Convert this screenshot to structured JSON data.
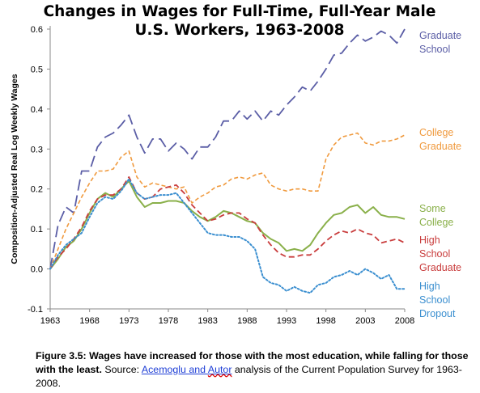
{
  "chart_data": {
    "type": "line",
    "title_lines": [
      "Changes in Wages for Full-Time, Full-Year Male",
      "U.S. Workers, 1963-2008"
    ],
    "ylabel": "Composition-Adjusted Real Log Weekly Wages",
    "ylim": [
      -0.1,
      0.6
    ],
    "yticks": [
      "-0.1",
      "0.0",
      "0.1",
      "0.2",
      "0.3",
      "0.4",
      "0.5",
      "0.6"
    ],
    "yticks_values": [
      -0.1,
      0.0,
      0.1,
      0.2,
      0.3,
      0.4,
      0.5,
      0.6
    ],
    "xlim": [
      1963,
      2008
    ],
    "xticks": [
      "1963",
      "1968",
      "1973",
      "1978",
      "1983",
      "1988",
      "1993",
      "1998",
      "2003",
      "2008"
    ],
    "xticks_values": [
      1963,
      1968,
      1973,
      1978,
      1983,
      1988,
      1993,
      1998,
      2003,
      2008
    ],
    "grid": false,
    "series": [
      {
        "name_lines": [
          "Graduate",
          "School"
        ],
        "color": "#5b5ea6",
        "dash": "long-dash",
        "x": [
          1963,
          1964,
          1965,
          1966,
          1967,
          1968,
          1969,
          1970,
          1971,
          1972,
          1973,
          1974,
          1975,
          1976,
          1977,
          1978,
          1979,
          1980,
          1981,
          1982,
          1983,
          1984,
          1985,
          1986,
          1987,
          1988,
          1989,
          1990,
          1991,
          1992,
          1993,
          1994,
          1995,
          1996,
          1997,
          1998,
          1999,
          2000,
          2001,
          2002,
          2003,
          2004,
          2005,
          2006,
          2007,
          2008
        ],
        "values": [
          0.0,
          0.11,
          0.155,
          0.14,
          0.245,
          0.245,
          0.305,
          0.33,
          0.34,
          0.36,
          0.385,
          0.33,
          0.29,
          0.325,
          0.325,
          0.295,
          0.315,
          0.3,
          0.275,
          0.305,
          0.305,
          0.33,
          0.37,
          0.37,
          0.395,
          0.375,
          0.395,
          0.37,
          0.395,
          0.385,
          0.41,
          0.43,
          0.455,
          0.445,
          0.47,
          0.5,
          0.535,
          0.54,
          0.565,
          0.585,
          0.57,
          0.58,
          0.595,
          0.585,
          0.565,
          0.6
        ]
      },
      {
        "name_lines": [
          "College",
          "Graduate"
        ],
        "color": "#f09a3e",
        "dash": "short-dash",
        "x": [
          1963,
          1964,
          1965,
          1966,
          1967,
          1968,
          1969,
          1970,
          1971,
          1972,
          1973,
          1974,
          1975,
          1976,
          1977,
          1978,
          1979,
          1980,
          1981,
          1982,
          1983,
          1984,
          1985,
          1986,
          1987,
          1988,
          1989,
          1990,
          1991,
          1992,
          1993,
          1994,
          1995,
          1996,
          1997,
          1998,
          1999,
          2000,
          2001,
          2002,
          2003,
          2004,
          2005,
          2006,
          2007,
          2008
        ],
        "values": [
          0.0,
          0.05,
          0.1,
          0.14,
          0.18,
          0.215,
          0.245,
          0.245,
          0.25,
          0.28,
          0.295,
          0.23,
          0.205,
          0.215,
          0.21,
          0.205,
          0.2,
          0.205,
          0.165,
          0.18,
          0.19,
          0.205,
          0.21,
          0.225,
          0.23,
          0.225,
          0.235,
          0.24,
          0.21,
          0.2,
          0.195,
          0.2,
          0.2,
          0.195,
          0.195,
          0.275,
          0.31,
          0.33,
          0.335,
          0.34,
          0.315,
          0.31,
          0.32,
          0.32,
          0.325,
          0.335
        ]
      },
      {
        "name_lines": [
          "Some",
          "College"
        ],
        "color": "#8ab04a",
        "dash": "solid",
        "x": [
          1963,
          1964,
          1965,
          1966,
          1967,
          1968,
          1969,
          1970,
          1971,
          1972,
          1973,
          1974,
          1975,
          1976,
          1977,
          1978,
          1979,
          1980,
          1981,
          1982,
          1983,
          1984,
          1985,
          1986,
          1987,
          1988,
          1989,
          1990,
          1991,
          1992,
          1993,
          1994,
          1995,
          1996,
          1997,
          1998,
          1999,
          2000,
          2001,
          2002,
          2003,
          2004,
          2005,
          2006,
          2007,
          2008
        ],
        "values": [
          0.0,
          0.025,
          0.055,
          0.07,
          0.1,
          0.14,
          0.175,
          0.19,
          0.18,
          0.2,
          0.22,
          0.18,
          0.155,
          0.165,
          0.165,
          0.17,
          0.17,
          0.165,
          0.145,
          0.13,
          0.12,
          0.13,
          0.145,
          0.14,
          0.13,
          0.12,
          0.115,
          0.09,
          0.075,
          0.065,
          0.045,
          0.05,
          0.045,
          0.06,
          0.09,
          0.115,
          0.135,
          0.14,
          0.155,
          0.16,
          0.14,
          0.155,
          0.135,
          0.13,
          0.13,
          0.125
        ]
      },
      {
        "name_lines": [
          "High",
          "School",
          "Graduate"
        ],
        "color": "#c93d3d",
        "dash": "dash",
        "x": [
          1963,
          1964,
          1965,
          1966,
          1967,
          1968,
          1969,
          1970,
          1971,
          1972,
          1973,
          1974,
          1975,
          1976,
          1977,
          1978,
          1979,
          1980,
          1981,
          1982,
          1983,
          1984,
          1985,
          1986,
          1987,
          1988,
          1989,
          1990,
          1991,
          1992,
          1993,
          1994,
          1995,
          1996,
          1997,
          1998,
          1999,
          2000,
          2001,
          2002,
          2003,
          2004,
          2005,
          2006,
          2007,
          2008
        ],
        "values": [
          0.0,
          0.03,
          0.05,
          0.075,
          0.105,
          0.145,
          0.175,
          0.185,
          0.185,
          0.2,
          0.23,
          0.19,
          0.175,
          0.18,
          0.2,
          0.205,
          0.21,
          0.19,
          0.16,
          0.14,
          0.12,
          0.125,
          0.135,
          0.14,
          0.14,
          0.125,
          0.115,
          0.085,
          0.06,
          0.04,
          0.03,
          0.03,
          0.035,
          0.035,
          0.05,
          0.07,
          0.085,
          0.095,
          0.09,
          0.1,
          0.09,
          0.085,
          0.065,
          0.07,
          0.075,
          0.065
        ]
      },
      {
        "name_lines": [
          "High",
          "School",
          "Dropout"
        ],
        "color": "#3b8fd0",
        "dash": "dotted",
        "x": [
          1963,
          1964,
          1965,
          1966,
          1967,
          1968,
          1969,
          1970,
          1971,
          1972,
          1973,
          1974,
          1975,
          1976,
          1977,
          1978,
          1979,
          1980,
          1981,
          1982,
          1983,
          1984,
          1985,
          1986,
          1987,
          1988,
          1989,
          1990,
          1991,
          1992,
          1993,
          1994,
          1995,
          1996,
          1997,
          1998,
          1999,
          2000,
          2001,
          2002,
          2003,
          2004,
          2005,
          2006,
          2007,
          2008
        ],
        "values": [
          0.0,
          0.035,
          0.06,
          0.075,
          0.09,
          0.13,
          0.165,
          0.18,
          0.175,
          0.195,
          0.225,
          0.19,
          0.175,
          0.18,
          0.185,
          0.185,
          0.19,
          0.165,
          0.14,
          0.115,
          0.09,
          0.085,
          0.085,
          0.08,
          0.08,
          0.07,
          0.05,
          -0.02,
          -0.035,
          -0.04,
          -0.055,
          -0.045,
          -0.055,
          -0.06,
          -0.04,
          -0.035,
          -0.02,
          -0.015,
          -0.005,
          -0.015,
          0.0,
          -0.01,
          -0.025,
          -0.015,
          -0.05,
          -0.05
        ]
      }
    ]
  },
  "caption": {
    "fig_label": "Figure 3.5:",
    "bold_text": " Wages have increased for those with the most education, while falling for those with the least.",
    "source_prefix": " Source: ",
    "link_part1": "Acemoglu",
    "link_and": " and ",
    "link_part2": "Autor",
    "suffix": " analysis of the Current Population Survey for 1963-2008."
  }
}
